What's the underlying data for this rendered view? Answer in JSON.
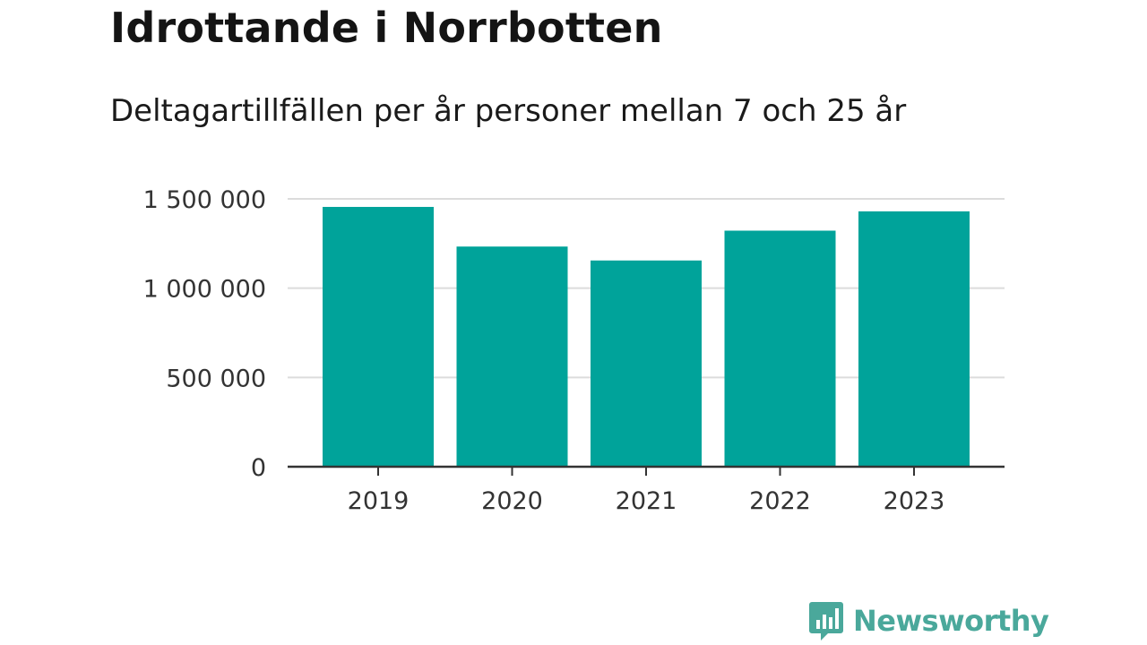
{
  "chart_data": {
    "type": "bar",
    "title": "Idrottande i Norrbotten",
    "subtitle": "Deltagartillfällen per år personer mellan 7 och 25 år",
    "categories": [
      "2019",
      "2020",
      "2021",
      "2022",
      "2023"
    ],
    "values": [
      1455000,
      1233000,
      1155000,
      1322000,
      1430000
    ],
    "ylim": [
      0,
      1500000
    ],
    "yticks": [
      0,
      500000,
      1000000,
      1500000
    ],
    "ytick_labels": [
      "0",
      "500 000",
      "1 000 000",
      "1 500 000"
    ],
    "grid": true,
    "bar_color": "#00a39a",
    "xlabel": "",
    "ylabel": ""
  },
  "brand": {
    "name": "Newsworthy",
    "icon": "newsworthy-bar-chart-logo-icon",
    "color": "#4aa89b"
  }
}
